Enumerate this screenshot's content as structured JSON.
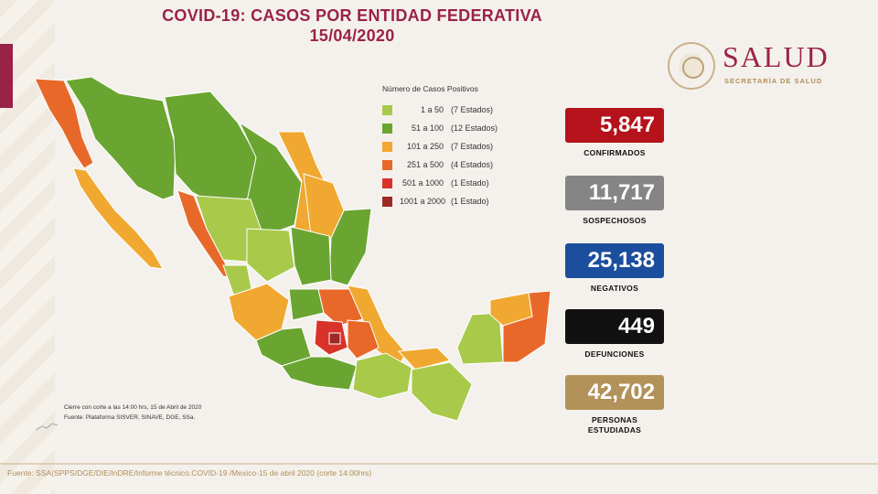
{
  "title": {
    "line1": "COVID-19: CASOS POR ENTIDAD FEDERATIVA",
    "line2": "15/04/2020"
  },
  "brand": {
    "name": "SALUD",
    "subtitle": "SECRETARÍA DE SALUD",
    "seal_icon": "government-seal-icon"
  },
  "legend": {
    "title": "Número de Casos Positivos",
    "items": [
      {
        "range": "1 a 50",
        "count": "(7 Estados)",
        "color": "#a8c94a"
      },
      {
        "range": "51 a 100",
        "count": "(12 Estados)",
        "color": "#6aa532"
      },
      {
        "range": "101 a 250",
        "count": "(7 Estados)",
        "color": "#f0a830"
      },
      {
        "range": "251 a 500",
        "count": "(4 Estados)",
        "color": "#e8682a"
      },
      {
        "range": "501 a 1000",
        "count": "(1 Estado)",
        "color": "#d9322b"
      },
      {
        "range": "1001 a 2000",
        "count": "(1 Estado)",
        "color": "#9e2a25"
      }
    ]
  },
  "stats": [
    {
      "value": "5,847",
      "label": [
        "CONFIRMADOS"
      ],
      "color": "#b5121b"
    },
    {
      "value": "11,717",
      "label": [
        "SOSPECHOSOS"
      ],
      "color": "#858585"
    },
    {
      "value": "25,138",
      "label": [
        "NEGATIVOS"
      ],
      "color": "#1c4e9e"
    },
    {
      "value": "449",
      "label": [
        "DEFUNCIONES"
      ],
      "color": "#111111"
    },
    {
      "value": "42,702",
      "label": [
        "PERSONAS",
        "ESTUDIADAS"
      ],
      "color": "#b3925a"
    }
  ],
  "note": {
    "line1": "Cierre con corte a las 14:00 hrs, 15 de Abril de 2020",
    "line2": "Fuente: Plataforma SISVER, SINAVE, DGE, SSa."
  },
  "footer": "Fuente: SSA(SPPS/DGE/DIE/InDRE/Informe técnico.COVID-19 /Mexico-15 de abril 2020 (corte 14:00hrs)"
}
